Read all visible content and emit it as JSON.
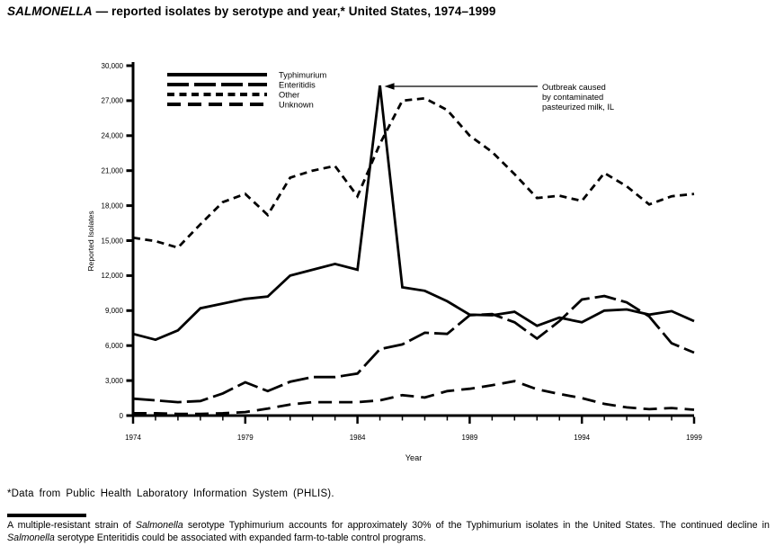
{
  "title": {
    "italic_part": "SALMONELLA",
    "rest": " — reported isolates by serotype and year,* United States, 1974–1999"
  },
  "footnote": "*Data from Public Health Laboratory Information System (PHLIS).",
  "caption": {
    "segments": [
      {
        "text": "A multiple-resistant strain of ",
        "italic": false
      },
      {
        "text": "Salmonella",
        "italic": true
      },
      {
        "text": " serotype Typhimurium accounts for approximately 30% of the Typhimurium isolates in the United States. The continued decline in ",
        "italic": false
      },
      {
        "text": "Salmonella",
        "italic": true
      },
      {
        "text": " serotype Enteritidis could be associated with expanded farm-to-table control programs.",
        "italic": false
      }
    ]
  },
  "chart_data": {
    "type": "line",
    "title": "SALMONELLA — reported isolates by serotype and year, United States, 1974–1999",
    "xlabel": "Year",
    "ylabel": "Reported Isolates",
    "grid": false,
    "legend_position": "top-left",
    "color": "#000000",
    "ylim": [
      0,
      30000
    ],
    "y_tick_values": [
      0,
      3000,
      6000,
      9000,
      12000,
      15000,
      18000,
      21000,
      24000,
      27000,
      30000
    ],
    "y_tick_labels": [
      "0",
      "3,000",
      "6,000",
      "9,000",
      "12,000",
      "15,000",
      "18,000",
      "21,000",
      "24,000",
      "27,000",
      "30,000"
    ],
    "x": [
      1974,
      1975,
      1976,
      1977,
      1978,
      1979,
      1980,
      1981,
      1982,
      1983,
      1984,
      1985,
      1986,
      1987,
      1988,
      1989,
      1990,
      1991,
      1992,
      1993,
      1994,
      1995,
      1996,
      1997,
      1998,
      1999
    ],
    "x_major_ticks": [
      1974,
      1979,
      1984,
      1989,
      1994,
      1999
    ],
    "series": [
      {
        "name": "Typhimurium",
        "style": "solid",
        "values": [
          7000,
          6500,
          7300,
          9200,
          9600,
          10000,
          10200,
          12000,
          12500,
          13000,
          12500,
          28300,
          11000,
          10700,
          9800,
          8650,
          8600,
          8900,
          7700,
          8400,
          8000,
          9000,
          9100,
          8650,
          8950,
          8100
        ]
      },
      {
        "name": "Enteritidis",
        "style": "long-dash",
        "values": [
          1450,
          1300,
          1150,
          1250,
          1900,
          2850,
          2100,
          2900,
          3300,
          3300,
          3600,
          5700,
          6100,
          7100,
          7000,
          8600,
          8700,
          8000,
          6600,
          8100,
          9950,
          10250,
          9700,
          8500,
          6200,
          5400
        ]
      },
      {
        "name": "Other",
        "style": "short-dash",
        "values": [
          15250,
          14950,
          14400,
          16400,
          18300,
          19000,
          17200,
          20400,
          21000,
          21400,
          18800,
          23300,
          27000,
          27200,
          26200,
          24000,
          22600,
          20700,
          18650,
          18850,
          18400,
          20800,
          19650,
          18100,
          18800,
          19000
        ]
      },
      {
        "name": "Unknown",
        "style": "spaced-dash",
        "values": [
          200,
          200,
          150,
          150,
          200,
          300,
          600,
          950,
          1150,
          1150,
          1150,
          1300,
          1750,
          1550,
          2100,
          2300,
          2600,
          2950,
          2250,
          1850,
          1500,
          1000,
          700,
          550,
          650,
          500
        ]
      }
    ],
    "annotation": {
      "text_lines": [
        "Outbreak caused",
        "by contaminated",
        "pasteurized milk, IL"
      ],
      "points_to": {
        "x": 1985,
        "y": 28300
      }
    }
  }
}
